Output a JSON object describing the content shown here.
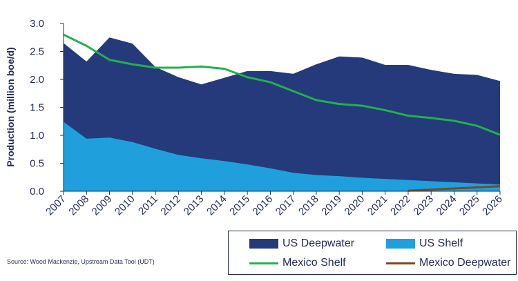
{
  "chart_data": {
    "type": "area",
    "ylabel": "Production (million boe/d)",
    "xlabel": "",
    "ylim": [
      0,
      3.0
    ],
    "yticks": [
      "0.0",
      "0.5",
      "1.0",
      "1.5",
      "2.0",
      "2.5",
      "3.0"
    ],
    "categories": [
      "2007",
      "2008",
      "2009",
      "2010",
      "2011",
      "2012",
      "2013",
      "2014",
      "2015",
      "2016",
      "2017",
      "2018",
      "2019",
      "2020",
      "2021",
      "2022",
      "2023",
      "2024",
      "2025",
      "2026"
    ],
    "grid": false,
    "legend_position": "bottom-right",
    "series": [
      {
        "name": "US Deepwater",
        "kind": "area",
        "color": "#243a7a",
        "values": [
          2.65,
          2.32,
          2.75,
          2.64,
          2.22,
          2.04,
          1.91,
          2.03,
          2.15,
          2.15,
          2.1,
          2.27,
          2.41,
          2.39,
          2.26,
          2.26,
          2.17,
          2.1,
          2.08,
          1.97
        ]
      },
      {
        "name": "US Shelf",
        "kind": "area",
        "color": "#1fa0dc",
        "values": [
          1.24,
          0.94,
          0.96,
          0.88,
          0.76,
          0.65,
          0.59,
          0.54,
          0.48,
          0.41,
          0.33,
          0.29,
          0.27,
          0.24,
          0.22,
          0.2,
          0.18,
          0.16,
          0.14,
          0.12
        ]
      },
      {
        "name": "Mexico Shelf",
        "kind": "line",
        "color": "#21b24b",
        "values": [
          2.8,
          2.6,
          2.35,
          2.27,
          2.21,
          2.21,
          2.23,
          2.19,
          2.04,
          1.95,
          1.79,
          1.63,
          1.56,
          1.53,
          1.45,
          1.35,
          1.31,
          1.26,
          1.17,
          1.01
        ]
      },
      {
        "name": "Mexico Deepwater",
        "kind": "line",
        "color": "#7a4a1e",
        "values": [
          null,
          null,
          null,
          null,
          null,
          null,
          null,
          null,
          null,
          null,
          null,
          null,
          null,
          null,
          null,
          0.01,
          0.03,
          0.05,
          0.07,
          0.09
        ]
      }
    ]
  },
  "legend": {
    "items": [
      "US Deepwater",
      "US Shelf",
      "Mexico Shelf",
      "Mexico Deepwater"
    ]
  },
  "source": "Source: Wood Mackenzie, Upstream Data Tool (UDT)"
}
